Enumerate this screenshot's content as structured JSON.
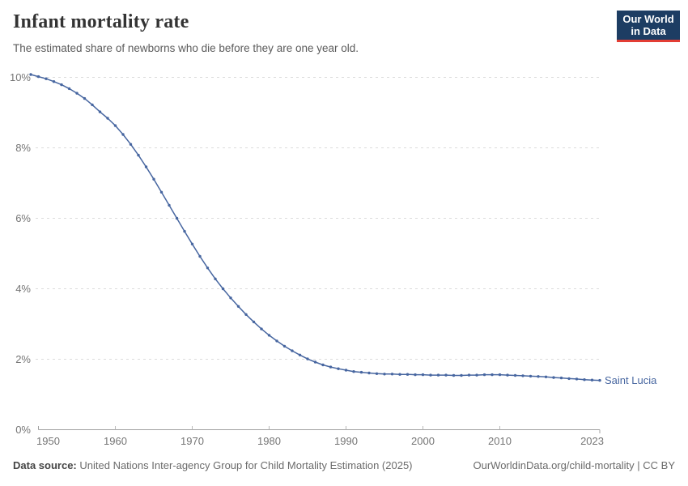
{
  "header": {
    "title": "Infant mortality rate",
    "subtitle": "The estimated share of newborns who die before they are one year old.",
    "logo": {
      "line1": "Our World",
      "line2": "in Data",
      "bg_color": "#1d3d63",
      "accent_color": "#e33d34"
    }
  },
  "chart_data": {
    "type": "line",
    "title": "Infant mortality rate",
    "unit": "%",
    "grid": "horizontal dashed",
    "legend_position": "end-of-line label",
    "ylim": [
      0,
      10
    ],
    "ytick_values": [
      0,
      2,
      4,
      6,
      8,
      10
    ],
    "ytick_labels": [
      "0%",
      "2%",
      "4%",
      "6%",
      "8%",
      "10%"
    ],
    "xtick_values": [
      1950,
      1960,
      1970,
      1980,
      1990,
      2000,
      2010,
      2023
    ],
    "xtick_labels": [
      "1950",
      "1960",
      "1970",
      "1980",
      "1990",
      "2000",
      "2010",
      "2023"
    ],
    "line_color": "#4766a0",
    "gridline_color": "#dcdcdc",
    "axis_color": "#a1a1a1",
    "tick_label_color": "#757575",
    "series": [
      {
        "name": "Saint Lucia",
        "x": [
          1949,
          1950,
          1951,
          1952,
          1953,
          1954,
          1955,
          1956,
          1957,
          1958,
          1959,
          1960,
          1961,
          1962,
          1963,
          1964,
          1965,
          1966,
          1967,
          1968,
          1969,
          1970,
          1971,
          1972,
          1973,
          1974,
          1975,
          1976,
          1977,
          1978,
          1979,
          1980,
          1981,
          1982,
          1983,
          1984,
          1985,
          1986,
          1987,
          1988,
          1989,
          1990,
          1991,
          1992,
          1993,
          1994,
          1995,
          1996,
          1997,
          1998,
          1999,
          2000,
          2001,
          2002,
          2003,
          2004,
          2005,
          2006,
          2007,
          2008,
          2009,
          2010,
          2011,
          2012,
          2013,
          2014,
          2015,
          2016,
          2017,
          2018,
          2019,
          2020,
          2021,
          2022,
          2023
        ],
        "values": [
          10.08,
          10.02,
          9.96,
          9.88,
          9.79,
          9.68,
          9.55,
          9.4,
          9.22,
          9.02,
          8.84,
          8.63,
          8.38,
          8.1,
          7.79,
          7.46,
          7.11,
          6.74,
          6.37,
          6.0,
          5.63,
          5.27,
          4.92,
          4.59,
          4.28,
          4.0,
          3.74,
          3.5,
          3.27,
          3.06,
          2.86,
          2.68,
          2.52,
          2.37,
          2.24,
          2.12,
          2.01,
          1.92,
          1.84,
          1.78,
          1.73,
          1.69,
          1.65,
          1.63,
          1.61,
          1.59,
          1.58,
          1.58,
          1.57,
          1.57,
          1.56,
          1.56,
          1.55,
          1.55,
          1.55,
          1.54,
          1.54,
          1.55,
          1.55,
          1.56,
          1.56,
          1.56,
          1.55,
          1.54,
          1.53,
          1.52,
          1.51,
          1.5,
          1.48,
          1.47,
          1.45,
          1.44,
          1.42,
          1.41,
          1.4
        ]
      }
    ]
  },
  "footer": {
    "datasource_label": "Data source:",
    "datasource_value": "United Nations Inter-agency Group for Child Mortality Estimation (2025)",
    "link": "OurWorldinData.org/child-mortality | CC BY"
  }
}
